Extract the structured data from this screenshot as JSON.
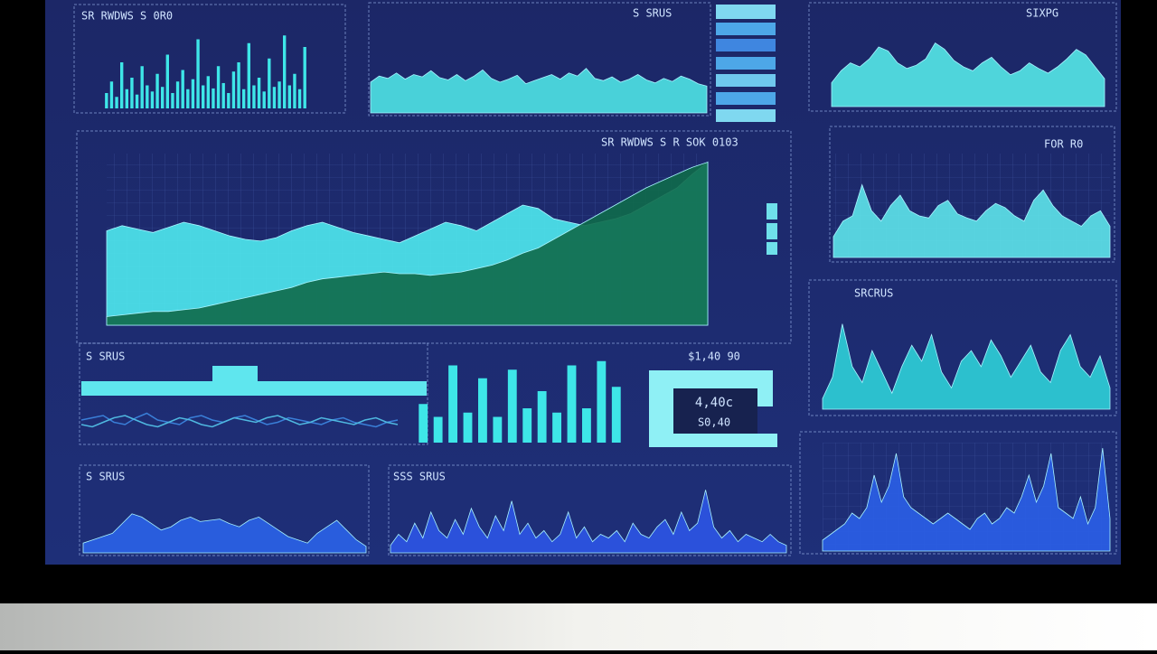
{
  "charts": [
    {
      "type": "bar",
      "title": "SR RWDWS S 0R0",
      "ylim": [
        0,
        100
      ],
      "series": [
        {
          "color": "#3ee6e8",
          "values": [
            20,
            35,
            15,
            60,
            25,
            40,
            18,
            55,
            30,
            22,
            45,
            28,
            70,
            20,
            35,
            50,
            25,
            38,
            90,
            30,
            42,
            26,
            55,
            33,
            20,
            48,
            60,
            25,
            85,
            30,
            40,
            22,
            65,
            28,
            35,
            95,
            30,
            45,
            25,
            80
          ]
        }
      ]
    },
    {
      "type": "area",
      "title": "S SRUS",
      "ylim": [
        0,
        100
      ],
      "series": [
        {
          "color": "#4fe3e6",
          "values": [
            40,
            48,
            45,
            52,
            44,
            50,
            47,
            55,
            46,
            43,
            50,
            42,
            48,
            56,
            45,
            40,
            44,
            49,
            38,
            42,
            46,
            50,
            44,
            52,
            48,
            58,
            45,
            42,
            47,
            40,
            44,
            50,
            43,
            39,
            45,
            41,
            48,
            44,
            38,
            35
          ]
        }
      ]
    },
    {
      "type": "area",
      "title": "SR RWDWS S R SOK 0103",
      "ylim": [
        0,
        100
      ],
      "series": [
        {
          "color": "#4fe9ee",
          "values": [
            55,
            58,
            56,
            54,
            57,
            60,
            58,
            55,
            52,
            50,
            49,
            51,
            55,
            58,
            60,
            57,
            54,
            52,
            50,
            48,
            52,
            56,
            60,
            58,
            55,
            60,
            65,
            70,
            68,
            62,
            60,
            58,
            60,
            62,
            65,
            70,
            75,
            80,
            88,
            95
          ]
        },
        {
          "color": "#0f6a4a",
          "values": [
            5,
            6,
            7,
            8,
            8,
            9,
            10,
            12,
            14,
            16,
            18,
            20,
            22,
            25,
            27,
            28,
            29,
            30,
            31,
            30,
            30,
            29,
            30,
            31,
            33,
            35,
            38,
            42,
            45,
            50,
            55,
            60,
            65,
            70,
            75,
            80,
            84,
            88,
            92,
            95
          ]
        }
      ]
    },
    {
      "type": "area",
      "title": "SIXPG",
      "ylim": [
        0,
        100
      ],
      "series": [
        {
          "color": "#55e8e8",
          "values": [
            30,
            45,
            55,
            50,
            60,
            75,
            70,
            55,
            48,
            52,
            60,
            80,
            72,
            58,
            50,
            45,
            55,
            62,
            50,
            40,
            45,
            55,
            48,
            42,
            50,
            60,
            72,
            65,
            50,
            35
          ]
        }
      ]
    },
    {
      "type": "area",
      "title": "FOR R0",
      "ylim": [
        0,
        100
      ],
      "series": [
        {
          "color": "#5ee4ea",
          "values": [
            20,
            35,
            40,
            70,
            45,
            35,
            50,
            60,
            45,
            40,
            38,
            50,
            55,
            42,
            38,
            35,
            45,
            52,
            48,
            40,
            35,
            55,
            65,
            50,
            40,
            35,
            30,
            40,
            45,
            30
          ]
        }
      ]
    },
    {
      "type": "area",
      "title": "SRCRUS",
      "ylim": [
        0,
        100
      ],
      "series": [
        {
          "color": "#2fd0d8",
          "values": [
            10,
            30,
            80,
            40,
            25,
            55,
            35,
            15,
            40,
            60,
            45,
            70,
            35,
            20,
            45,
            55,
            40,
            65,
            50,
            30,
            45,
            60,
            35,
            25,
            55,
            70,
            40,
            30,
            50,
            20
          ]
        }
      ]
    },
    {
      "type": "line",
      "title": "S SRUS",
      "ylim": [
        0,
        100
      ],
      "series": [
        {
          "color": "#3a7fd8",
          "values": [
            50,
            55,
            60,
            45,
            40,
            55,
            65,
            50,
            45,
            40,
            55,
            60,
            50,
            45,
            55,
            60,
            50,
            40,
            45,
            55,
            50,
            45,
            40,
            50,
            55,
            45,
            40,
            35,
            45,
            50
          ]
        },
        {
          "color": "#4fb8e0",
          "values": [
            40,
            35,
            45,
            55,
            60,
            50,
            40,
            35,
            45,
            55,
            50,
            40,
            35,
            45,
            55,
            50,
            45,
            55,
            60,
            50,
            40,
            45,
            55,
            50,
            45,
            40,
            50,
            55,
            45,
            40
          ]
        }
      ]
    },
    {
      "type": "bar",
      "title": "",
      "ylim": [
        0,
        100
      ],
      "series": [
        {
          "color": "#3ee6e8",
          "values": [
            45,
            30,
            90,
            35,
            75,
            30,
            85,
            40,
            60,
            35,
            90,
            40,
            95,
            65
          ]
        }
      ]
    },
    {
      "type": "area",
      "title": "S SRUS",
      "ylim": [
        0,
        100
      ],
      "series": [
        {
          "color": "#2a63e8",
          "values": [
            15,
            20,
            25,
            30,
            45,
            60,
            55,
            45,
            35,
            40,
            50,
            55,
            48,
            50,
            52,
            45,
            40,
            50,
            55,
            45,
            35,
            25,
            20,
            15,
            30,
            40,
            50,
            35,
            20,
            10
          ]
        }
      ]
    },
    {
      "type": "area",
      "title": "SSS SRUS",
      "ylim": [
        0,
        100
      ],
      "series": [
        {
          "color": "#2c55e6",
          "values": [
            10,
            25,
            15,
            40,
            20,
            55,
            30,
            20,
            45,
            25,
            60,
            35,
            20,
            50,
            30,
            70,
            25,
            40,
            20,
            30,
            15,
            25,
            55,
            20,
            35,
            15,
            25,
            20,
            30,
            15,
            40,
            25,
            20,
            35,
            45,
            25,
            55,
            30,
            40,
            85,
            35,
            20,
            30,
            15,
            25,
            20,
            15,
            25,
            15,
            10
          ]
        }
      ]
    },
    {
      "type": "area",
      "title": "",
      "ylim": [
        0,
        100
      ],
      "series": [
        {
          "color": "#2a5fe8",
          "values": [
            10,
            15,
            20,
            25,
            35,
            30,
            40,
            70,
            45,
            60,
            90,
            50,
            40,
            35,
            30,
            25,
            30,
            35,
            30,
            25,
            20,
            30,
            35,
            25,
            30,
            40,
            35,
            50,
            70,
            45,
            60,
            90,
            40,
            35,
            30,
            50,
            25,
            40,
            95,
            30
          ]
        }
      ]
    }
  ],
  "widget": {
    "heading": "$1,40 90",
    "value": "4,40c",
    "note": "S0,40"
  }
}
